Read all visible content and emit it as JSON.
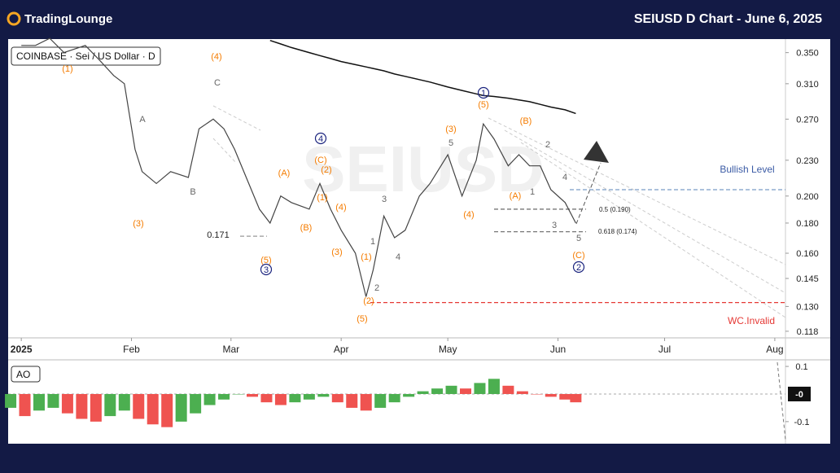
{
  "header": {
    "logo": "TradingLounge",
    "title": "SEIUSD D Chart - June 6, 2025"
  },
  "chart_data": [
    {
      "type": "line",
      "symbol": "COINBASE · Sei / US Dollar · D",
      "watermark": "SEIUSD",
      "log_scale": true,
      "x": [
        0,
        4,
        8,
        12,
        18,
        22,
        26,
        29,
        32,
        34,
        38,
        42,
        47,
        50,
        54,
        57,
        60,
        64,
        67,
        70,
        73,
        76,
        81,
        84,
        87,
        90,
        94,
        97,
        99,
        102,
        105,
        108,
        112,
        115,
        120,
        124,
        128,
        130,
        133,
        137,
        140,
        143,
        146,
        149,
        153,
        156
      ],
      "series": [
        {
          "color": "#444444",
          "values": [
            0.36,
            0.36,
            0.37,
            0.35,
            0.36,
            0.34,
            0.32,
            0.31,
            0.24,
            0.22,
            0.21,
            0.22,
            0.215,
            0.26,
            0.27,
            0.26,
            0.24,
            0.21,
            0.19,
            0.18,
            0.2,
            0.195,
            0.19,
            0.21,
            0.19,
            0.175,
            0.16,
            0.135,
            0.15,
            0.185,
            0.17,
            0.175,
            0.2,
            0.21,
            0.235,
            0.2,
            0.23,
            0.265,
            0.25,
            0.225,
            0.235,
            0.225,
            0.225,
            0.205,
            0.195,
            0.18
          ]
        },
        {
          "color": "#111111",
          "values": [
            null,
            null,
            null,
            null,
            null,
            null,
            null,
            null,
            null,
            null,
            null,
            null,
            null,
            null,
            null,
            null,
            null,
            null,
            null,
            0.367,
            0.362,
            0.357,
            0.35,
            0.346,
            0.342,
            0.338,
            0.334,
            0.331,
            0.329,
            0.326,
            0.322,
            0.319,
            0.315,
            0.312,
            0.306,
            0.302,
            0.298,
            0.296,
            0.295,
            0.293,
            0.291,
            0.289,
            0.286,
            0.283,
            0.28,
            0.276
          ]
        }
      ],
      "xlim": [
        -3.7,
        215
      ],
      "xticks": [
        {
          "value": 0,
          "label": "2025"
        },
        {
          "value": 31,
          "label": "Feb"
        },
        {
          "value": 59,
          "label": "Mar"
        },
        {
          "value": 90,
          "label": "Apr"
        },
        {
          "value": 120,
          "label": "May"
        },
        {
          "value": 151,
          "label": "Jun"
        },
        {
          "value": 181,
          "label": "Jul"
        },
        {
          "value": 212,
          "label": "Aug"
        }
      ],
      "ylim": [
        0.115,
        0.369
      ],
      "yticks": [
        {
          "value": 0.35,
          "label": "0.350"
        },
        {
          "value": 0.31,
          "label": "0.310"
        },
        {
          "value": 0.27,
          "label": "0.270"
        },
        {
          "value": 0.23,
          "label": "0.230"
        },
        {
          "value": 0.2,
          "label": "0.200"
        },
        {
          "value": 0.18,
          "label": "0.180"
        },
        {
          "value": 0.16,
          "label": "0.160"
        },
        {
          "value": 0.145,
          "label": "0.145"
        },
        {
          "value": 0.13,
          "label": "0.130"
        },
        {
          "value": 0.118,
          "label": "0.118"
        }
      ],
      "levels": [
        {
          "value": 0.205,
          "color": "#7a9cc6"
        },
        {
          "value": 0.132,
          "color": "#e53935"
        },
        {
          "value": 0.171,
          "color": "#999999"
        },
        {
          "value": 0.19,
          "color": "#777777"
        },
        {
          "value": 0.174,
          "color": "#777777"
        }
      ],
      "annotations": [
        "(1)",
        "(4)",
        "C",
        "A",
        "B",
        "(3)",
        "0.171",
        "(5)",
        "3",
        "(A)",
        "(B)",
        "(C)",
        "(2)",
        "(1)",
        "(4)",
        "(3)",
        "(1)",
        "(2)",
        "(5)",
        "4",
        "1",
        "2",
        "3",
        "4",
        "5",
        "(3)",
        "(4)",
        "1",
        "(5)",
        "(B)",
        "2",
        "(A)",
        "1",
        "4",
        "3",
        "5",
        "(C)",
        "2",
        "0.5 (0.190)",
        "0.618 (0.174)",
        "Bullish Level",
        "WC.Invalid"
      ]
    },
    {
      "type": "bar",
      "indicator": "AO",
      "last_label": "-0",
      "up_color": "#4caf50",
      "down_color": "#ef5350",
      "x": [
        -3,
        1,
        5,
        9,
        13,
        17,
        21,
        25,
        29,
        33,
        37,
        41,
        45,
        49,
        53,
        57,
        61,
        65,
        69,
        73,
        77,
        81,
        85,
        89,
        93,
        97,
        101,
        105,
        109,
        113,
        117,
        121,
        125,
        129,
        133,
        137,
        141,
        145,
        149,
        153,
        156
      ],
      "values": [
        -0.05,
        -0.08,
        -0.06,
        -0.05,
        -0.07,
        -0.09,
        -0.1,
        -0.08,
        -0.06,
        -0.09,
        -0.11,
        -0.12,
        -0.1,
        -0.07,
        -0.04,
        -0.02,
        0,
        -0.01,
        -0.03,
        -0.04,
        -0.03,
        -0.02,
        -0.01,
        -0.03,
        -0.05,
        -0.06,
        -0.05,
        -0.03,
        -0.01,
        0.01,
        0.02,
        0.03,
        0.02,
        0.04,
        0.055,
        0.03,
        0.01,
        0,
        -0.01,
        -0.02,
        -0.03
      ],
      "ylim": [
        -0.18,
        0.115
      ],
      "yticks": [
        0.1,
        -0.1
      ]
    }
  ]
}
